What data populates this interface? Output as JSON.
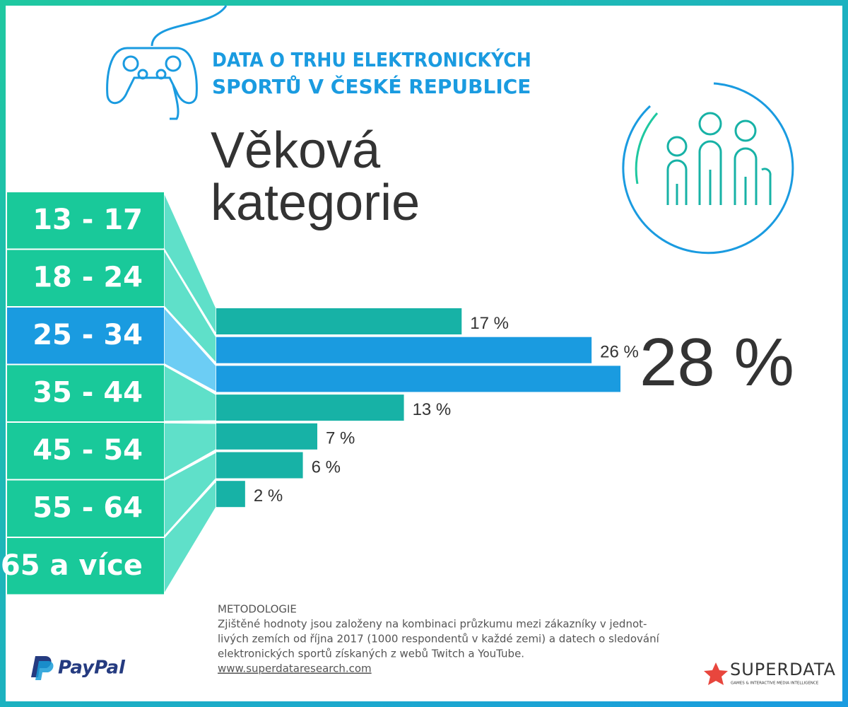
{
  "header": {
    "title_lines": [
      "DATA O TRHU ELEKTRONICKÝCH",
      "SPORTŮ V ČESKÉ REPUBLICE"
    ]
  },
  "chart_data": {
    "type": "bar",
    "orientation": "horizontal",
    "title_lines": [
      "Věková",
      "kategorie"
    ],
    "categories": [
      "13 - 17",
      "18 - 24",
      "25 - 34",
      "35 - 44",
      "45 - 54",
      "55 - 64",
      "65 a více"
    ],
    "values": [
      17,
      26,
      28,
      13,
      7,
      6,
      2
    ],
    "value_labels": [
      "17 %",
      "26 %",
      "28 %",
      "13 %",
      "7 %",
      "6 %",
      "2 %"
    ],
    "colors": [
      "#17b2a6",
      "#1a9be0",
      "#1a9be0",
      "#17b2a6",
      "#17b2a6",
      "#17b2a6",
      "#17b2a6"
    ],
    "highlight_index": 2
  },
  "methodology": {
    "heading": "METODOLOGIE",
    "lines": [
      "Zjištěné hodnoty jsou založeny na kombinaci průzkumu mezi zákazníky v jednot-",
      "livých zemích od října 2017 (1000 respondentů v každé zemi) a datech o sledování",
      "elektronických sportů získaných z webů Twitch a YouTube."
    ],
    "link": "www.superdataresearch.com"
  },
  "logos": {
    "paypal": "PayPal",
    "superdata": "SUPERDATA",
    "superdata_tagline": "GAMES & INTERACTIVE MEDIA INTELLIGENCE"
  }
}
